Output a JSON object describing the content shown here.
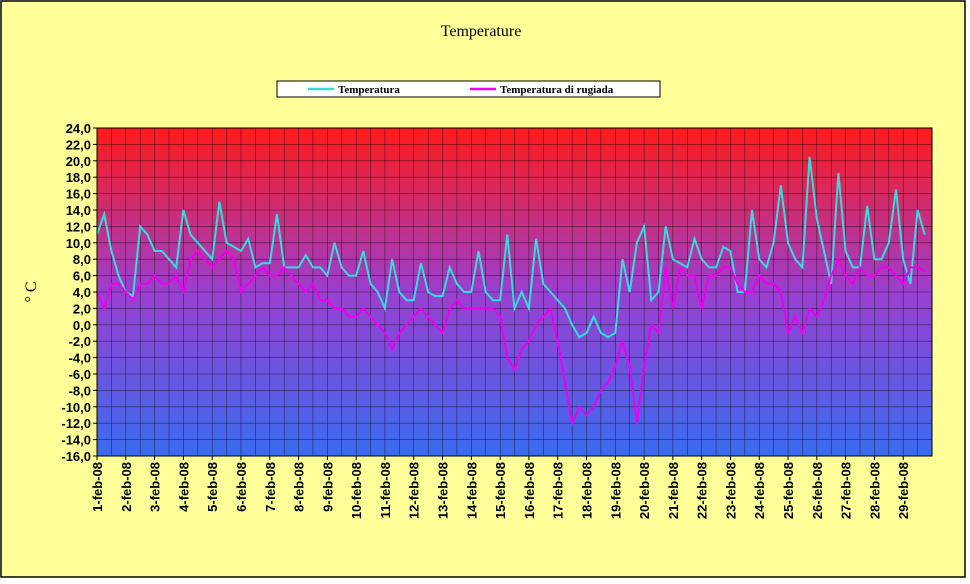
{
  "chart_data": {
    "type": "line",
    "title": "Temperature",
    "y_label": "° C",
    "categories": [
      "1-feb-08",
      null,
      null,
      null,
      "2-feb-08",
      null,
      null,
      null,
      "3-feb-08",
      null,
      null,
      null,
      "4-feb-08",
      null,
      null,
      null,
      "5-feb-08",
      null,
      null,
      null,
      "6-feb-08",
      null,
      null,
      null,
      "7-feb-08",
      null,
      null,
      null,
      "8-feb-08",
      null,
      null,
      null,
      "9-feb-08",
      null,
      null,
      null,
      "10-feb-08",
      null,
      null,
      null,
      "11-feb-08",
      null,
      null,
      null,
      "12-feb-08",
      null,
      null,
      null,
      "13-feb-08",
      null,
      null,
      null,
      "14-feb-08",
      null,
      null,
      null,
      "15-feb-08",
      null,
      null,
      null,
      "16-feb-08",
      null,
      null,
      null,
      "17-feb-08",
      null,
      null,
      null,
      "18-feb-08",
      null,
      null,
      null,
      "19-feb-08",
      null,
      null,
      null,
      "20-feb-08",
      null,
      null,
      null,
      "21-feb-08",
      null,
      null,
      null,
      "22-feb-08",
      null,
      null,
      null,
      "23-feb-08",
      null,
      null,
      null,
      "24-feb-08",
      null,
      null,
      null,
      "25-feb-08",
      null,
      null,
      null,
      "26-feb-08",
      null,
      null,
      null,
      "27-feb-08",
      null,
      null,
      null,
      "28-feb-08",
      null,
      null,
      null,
      "29-feb-08",
      null,
      null,
      null
    ],
    "series": [
      {
        "name": "Temperatura",
        "color": "#33dddd",
        "values": [
          11,
          13.5,
          9,
          6,
          4,
          3.5,
          12,
          11,
          9,
          9,
          8,
          7,
          14,
          11,
          10,
          9,
          8,
          15,
          10,
          9.5,
          9,
          10.5,
          7,
          7.5,
          7.5,
          13.5,
          7,
          7,
          7,
          8.5,
          7,
          7,
          6,
          10,
          7,
          6,
          6,
          9,
          5,
          4,
          2,
          8,
          4,
          3,
          3,
          7.5,
          4,
          3.5,
          3.5,
          7,
          5,
          4,
          4,
          9,
          4,
          3,
          3,
          11,
          2,
          4,
          2,
          10.5,
          5,
          4,
          3,
          2,
          0,
          -1.5,
          -1,
          1,
          -1,
          -1.5,
          -1,
          8,
          4,
          10,
          12,
          3,
          4,
          12,
          8,
          7.5,
          7,
          10.5,
          8,
          7,
          7,
          9.5,
          9,
          4,
          4,
          14,
          8,
          7,
          10,
          17,
          10,
          8,
          7,
          20.5,
          13,
          9,
          5,
          18.5,
          9,
          7,
          7,
          14.5,
          8,
          8,
          10,
          16.5,
          8,
          5,
          14,
          11
        ]
      },
      {
        "name": "Temperatura di rugiada",
        "color": "#ee00ee",
        "values": [
          4,
          2,
          5,
          5,
          4,
          3,
          5,
          5,
          6,
          5,
          5,
          6,
          4,
          8,
          9,
          8,
          7,
          8,
          9,
          8,
          4,
          5,
          6,
          7,
          6,
          6,
          7,
          6,
          5,
          4,
          5,
          3,
          3,
          2,
          2,
          1,
          1,
          2,
          1,
          0,
          -1,
          -3,
          -1,
          0,
          1,
          2,
          1,
          0,
          -1,
          2,
          3,
          2,
          2,
          2,
          2,
          2,
          1,
          -4,
          -5.5,
          -3,
          -2,
          0,
          1,
          2,
          -2,
          -7,
          -12,
          -10,
          -11,
          -10,
          -8,
          -7,
          -5,
          -2,
          -5,
          -12,
          -5,
          0,
          -1,
          7,
          2,
          7,
          6,
          6,
          2,
          6,
          6,
          7,
          7,
          5,
          4,
          4,
          6,
          5,
          5,
          4,
          -1,
          1,
          -1,
          2,
          1,
          3,
          6,
          8,
          6,
          5,
          7,
          6,
          6,
          7,
          7,
          6,
          5,
          7,
          7,
          6.5
        ]
      }
    ],
    "ylim": [
      -16,
      24
    ],
    "yticks": [
      {
        "value": -16,
        "label": "-16,0"
      },
      {
        "value": -14,
        "label": "-14,0"
      },
      {
        "value": -12,
        "label": "-12,0"
      },
      {
        "value": -10,
        "label": "-10,0"
      },
      {
        "value": -8,
        "label": "-8,0"
      },
      {
        "value": -6,
        "label": "-6,0"
      },
      {
        "value": -4,
        "label": "-4,0"
      },
      {
        "value": -2,
        "label": "-2,0"
      },
      {
        "value": 0,
        "label": "0,0"
      },
      {
        "value": 2,
        "label": "2,0"
      },
      {
        "value": 4,
        "label": "4,0"
      },
      {
        "value": 6,
        "label": "6,0"
      },
      {
        "value": 8,
        "label": "8,0"
      },
      {
        "value": 10,
        "label": "10,0"
      },
      {
        "value": 12,
        "label": "12,0"
      },
      {
        "value": 14,
        "label": "14,0"
      },
      {
        "value": 16,
        "label": "16,0"
      },
      {
        "value": 18,
        "label": "18,0"
      },
      {
        "value": 20,
        "label": "20,0"
      },
      {
        "value": 22,
        "label": "22,0"
      },
      {
        "value": 24,
        "label": "24,0"
      }
    ],
    "grid": true,
    "legend": "top"
  }
}
